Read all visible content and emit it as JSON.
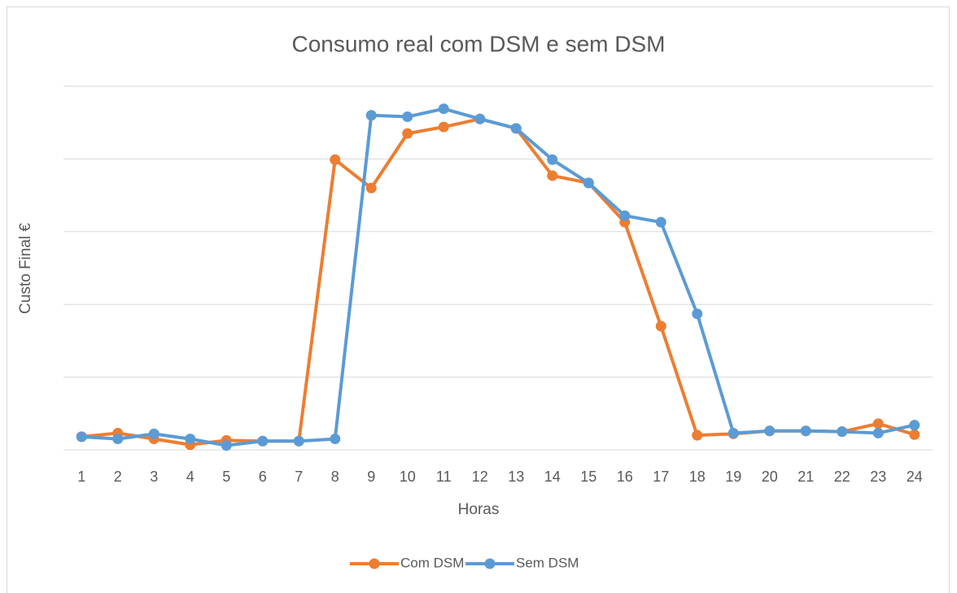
{
  "chart_data": {
    "type": "line",
    "title": "Consumo real com DSM e sem DSM",
    "x_label": "Horas",
    "y_label": "Custo Final €",
    "categories": [
      "1",
      "2",
      "3",
      "4",
      "5",
      "6",
      "7",
      "8",
      "9",
      "10",
      "11",
      "12",
      "13",
      "14",
      "15",
      "16",
      "17",
      "18",
      "19",
      "20",
      "21",
      "22",
      "23",
      "24"
    ],
    "series": [
      {
        "name": "Com DSM",
        "color": "#ed7d31",
        "values": [
          0.18,
          0.23,
          0.15,
          0.07,
          0.13,
          0.12,
          0.12,
          3.99,
          3.6,
          4.35,
          4.44,
          4.55,
          4.42,
          3.77,
          3.67,
          3.13,
          1.7,
          0.2,
          0.22,
          0.26,
          0.26,
          0.25,
          0.36,
          0.21
        ]
      },
      {
        "name": "Sem DSM",
        "color": "#5b9bd5",
        "values": [
          0.18,
          0.15,
          0.22,
          0.15,
          0.06,
          0.12,
          0.12,
          0.15,
          4.6,
          4.58,
          4.69,
          4.55,
          4.42,
          3.99,
          3.67,
          3.22,
          3.13,
          1.87,
          0.23,
          0.26,
          0.26,
          0.25,
          0.23,
          0.34
        ]
      }
    ],
    "ylim": [
      0,
      5
    ],
    "yticks": [
      0,
      1,
      2,
      3,
      4,
      5
    ],
    "grid": true,
    "legend": "bottom"
  }
}
